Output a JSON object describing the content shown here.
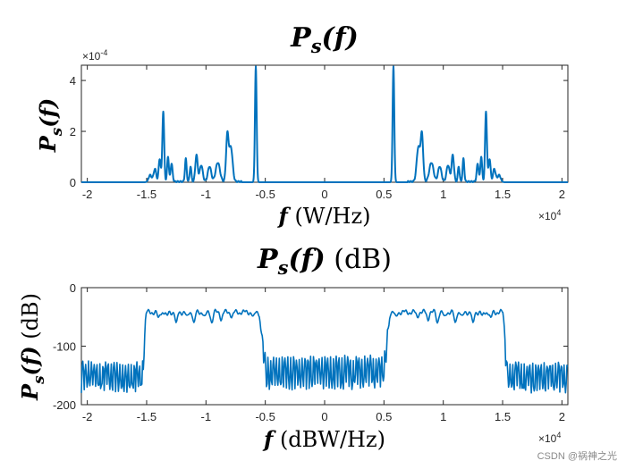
{
  "watermark": "CSDN @祸神之光",
  "colors": {
    "line": "#0072BD",
    "axis": "#262626"
  },
  "chart_data": [
    {
      "type": "line",
      "title_main": "P",
      "title_sub": "s",
      "title_arg": "(f)",
      "title_rest": "",
      "xlabel_var": "f",
      "xlabel_rest": " (W/Hz)",
      "ylabel_main": "P",
      "ylabel_sub": "s",
      "ylabel_arg": "(f)",
      "ylabel_rest": "",
      "xlim": [
        -20500,
        20500
      ],
      "ylim": [
        0,
        4.6
      ],
      "xticks": [
        -20000,
        -15000,
        -10000,
        -5000,
        0,
        5000,
        10000,
        15000,
        20000
      ],
      "xtick_labels": [
        "-2",
        "-1.5",
        "-1",
        "-0.5",
        "0",
        "0.5",
        "1",
        "1.5",
        "2"
      ],
      "yticks": [
        0,
        2,
        4
      ],
      "ytick_labels": [
        "0",
        "2",
        "4"
      ],
      "x_multiplier": {
        "base": "×10",
        "exp": "4"
      },
      "y_multiplier": {
        "base": "×10",
        "exp": "-4"
      },
      "series": [
        {
          "name": "P_s(f)",
          "peaks": [
            {
              "f": 5800,
              "amp": 4.55,
              "w": 100
            },
            {
              "f": 7900,
              "amp": 1.35,
              "w": 200
            },
            {
              "f": 8200,
              "amp": 1.8,
              "w": 150
            },
            {
              "f": 9000,
              "amp": 0.75,
              "w": 250
            },
            {
              "f": 9700,
              "amp": 0.6,
              "w": 200
            },
            {
              "f": 10400,
              "amp": 0.65,
              "w": 180
            },
            {
              "f": 10800,
              "amp": 1.05,
              "w": 140
            },
            {
              "f": 11300,
              "amp": 0.6,
              "w": 100
            },
            {
              "f": 11700,
              "amp": 0.9,
              "w": 100
            },
            {
              "f": 12900,
              "amp": 0.7,
              "w": 120
            },
            {
              "f": 13200,
              "amp": 1.0,
              "w": 100
            },
            {
              "f": 13600,
              "amp": 2.75,
              "w": 110
            },
            {
              "f": 13900,
              "amp": 0.9,
              "w": 120
            },
            {
              "f": 14300,
              "amp": 0.5,
              "w": 150
            },
            {
              "f": 14700,
              "amp": 0.25,
              "w": 200
            }
          ]
        }
      ]
    },
    {
      "type": "line",
      "title_main": "P",
      "title_sub": "s",
      "title_arg": "(f)",
      "title_rest": " (dB)",
      "xlabel_var": "f",
      "xlabel_rest": " (dBW/Hz)",
      "ylabel_main": "P",
      "ylabel_sub": "s",
      "ylabel_arg": "(f)",
      "ylabel_rest": " (dB)",
      "xlim": [
        -20500,
        20500
      ],
      "ylim": [
        -200,
        0
      ],
      "xticks": [
        -20000,
        -15000,
        -10000,
        -5000,
        0,
        5000,
        10000,
        15000,
        20000
      ],
      "xtick_labels": [
        "-2",
        "-1.5",
        "-1",
        "-0.5",
        "0",
        "0.5",
        "1",
        "1.5",
        "2"
      ],
      "yticks": [
        -200,
        -100,
        0
      ],
      "ytick_labels": [
        "-200",
        "-100",
        "0"
      ],
      "x_multiplier": {
        "base": "×10",
        "exp": "4"
      },
      "series": [
        {
          "name": "P_s(f) dB",
          "inband_range_hz": [
            5600,
            15000
          ],
          "inband_level_db": -42,
          "inband_dips": [
            {
              "f": 6000,
              "depth": 10
            },
            {
              "f": 7800,
              "depth": 8
            },
            {
              "f": 8700,
              "depth": 12
            },
            {
              "f": 9500,
              "depth": 18
            },
            {
              "f": 10100,
              "depth": 10
            },
            {
              "f": 11000,
              "depth": 20
            },
            {
              "f": 11600,
              "depth": 10
            },
            {
              "f": 12500,
              "depth": 22
            },
            {
              "f": 13300,
              "depth": 8
            },
            {
              "f": 14000,
              "depth": 12
            }
          ],
          "outband_upper_db": -125,
          "outband_lower_db": -180,
          "inner_band_upper_db": -115,
          "inner_band_lower_db": -175,
          "transition_inner_hz": [
            4900,
            5600
          ],
          "transition_outer_hz": [
            15000,
            15400
          ]
        }
      ]
    }
  ]
}
